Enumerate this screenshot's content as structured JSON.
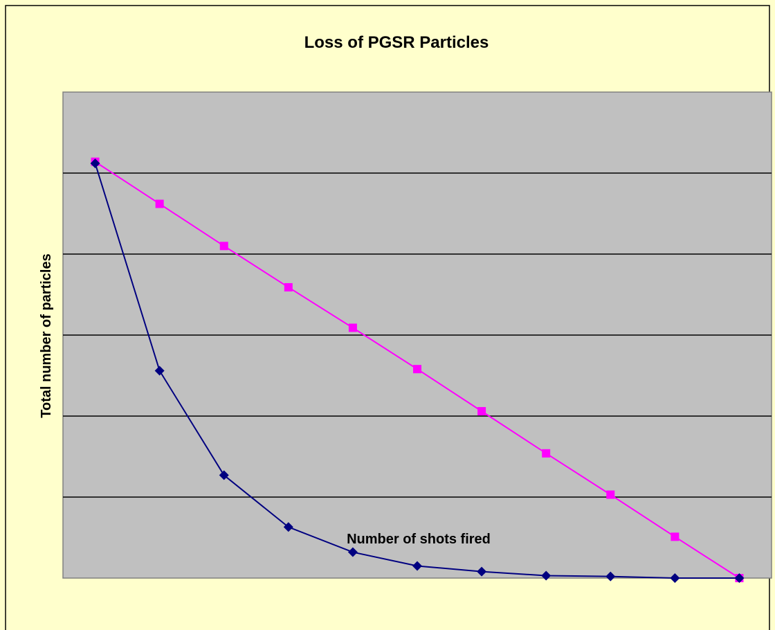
{
  "chart_data": {
    "type": "line",
    "title": "Loss of PGSR Particles",
    "x_label": "Number of shots fired",
    "y_label": "Total number of particles",
    "categories": [
      null,
      null,
      null,
      null,
      null,
      null,
      null,
      null,
      null,
      null,
      null
    ],
    "series": [
      {
        "color": "#ff00ff",
        "marker": "square",
        "values": [
          5.14,
          4.62,
          4.1,
          3.59,
          3.09,
          2.58,
          2.06,
          1.54,
          1.03,
          0.51,
          0
        ]
      },
      {
        "color": "#000080",
        "marker": "diamond",
        "values": [
          5.12,
          2.56,
          1.27,
          0.63,
          0.32,
          0.15,
          0.08,
          0.03,
          0.02,
          0,
          0
        ]
      }
    ],
    "ylim": [
      0,
      6
    ],
    "yticks": [
      1,
      2,
      3,
      4,
      5
    ],
    "grid": true
  }
}
